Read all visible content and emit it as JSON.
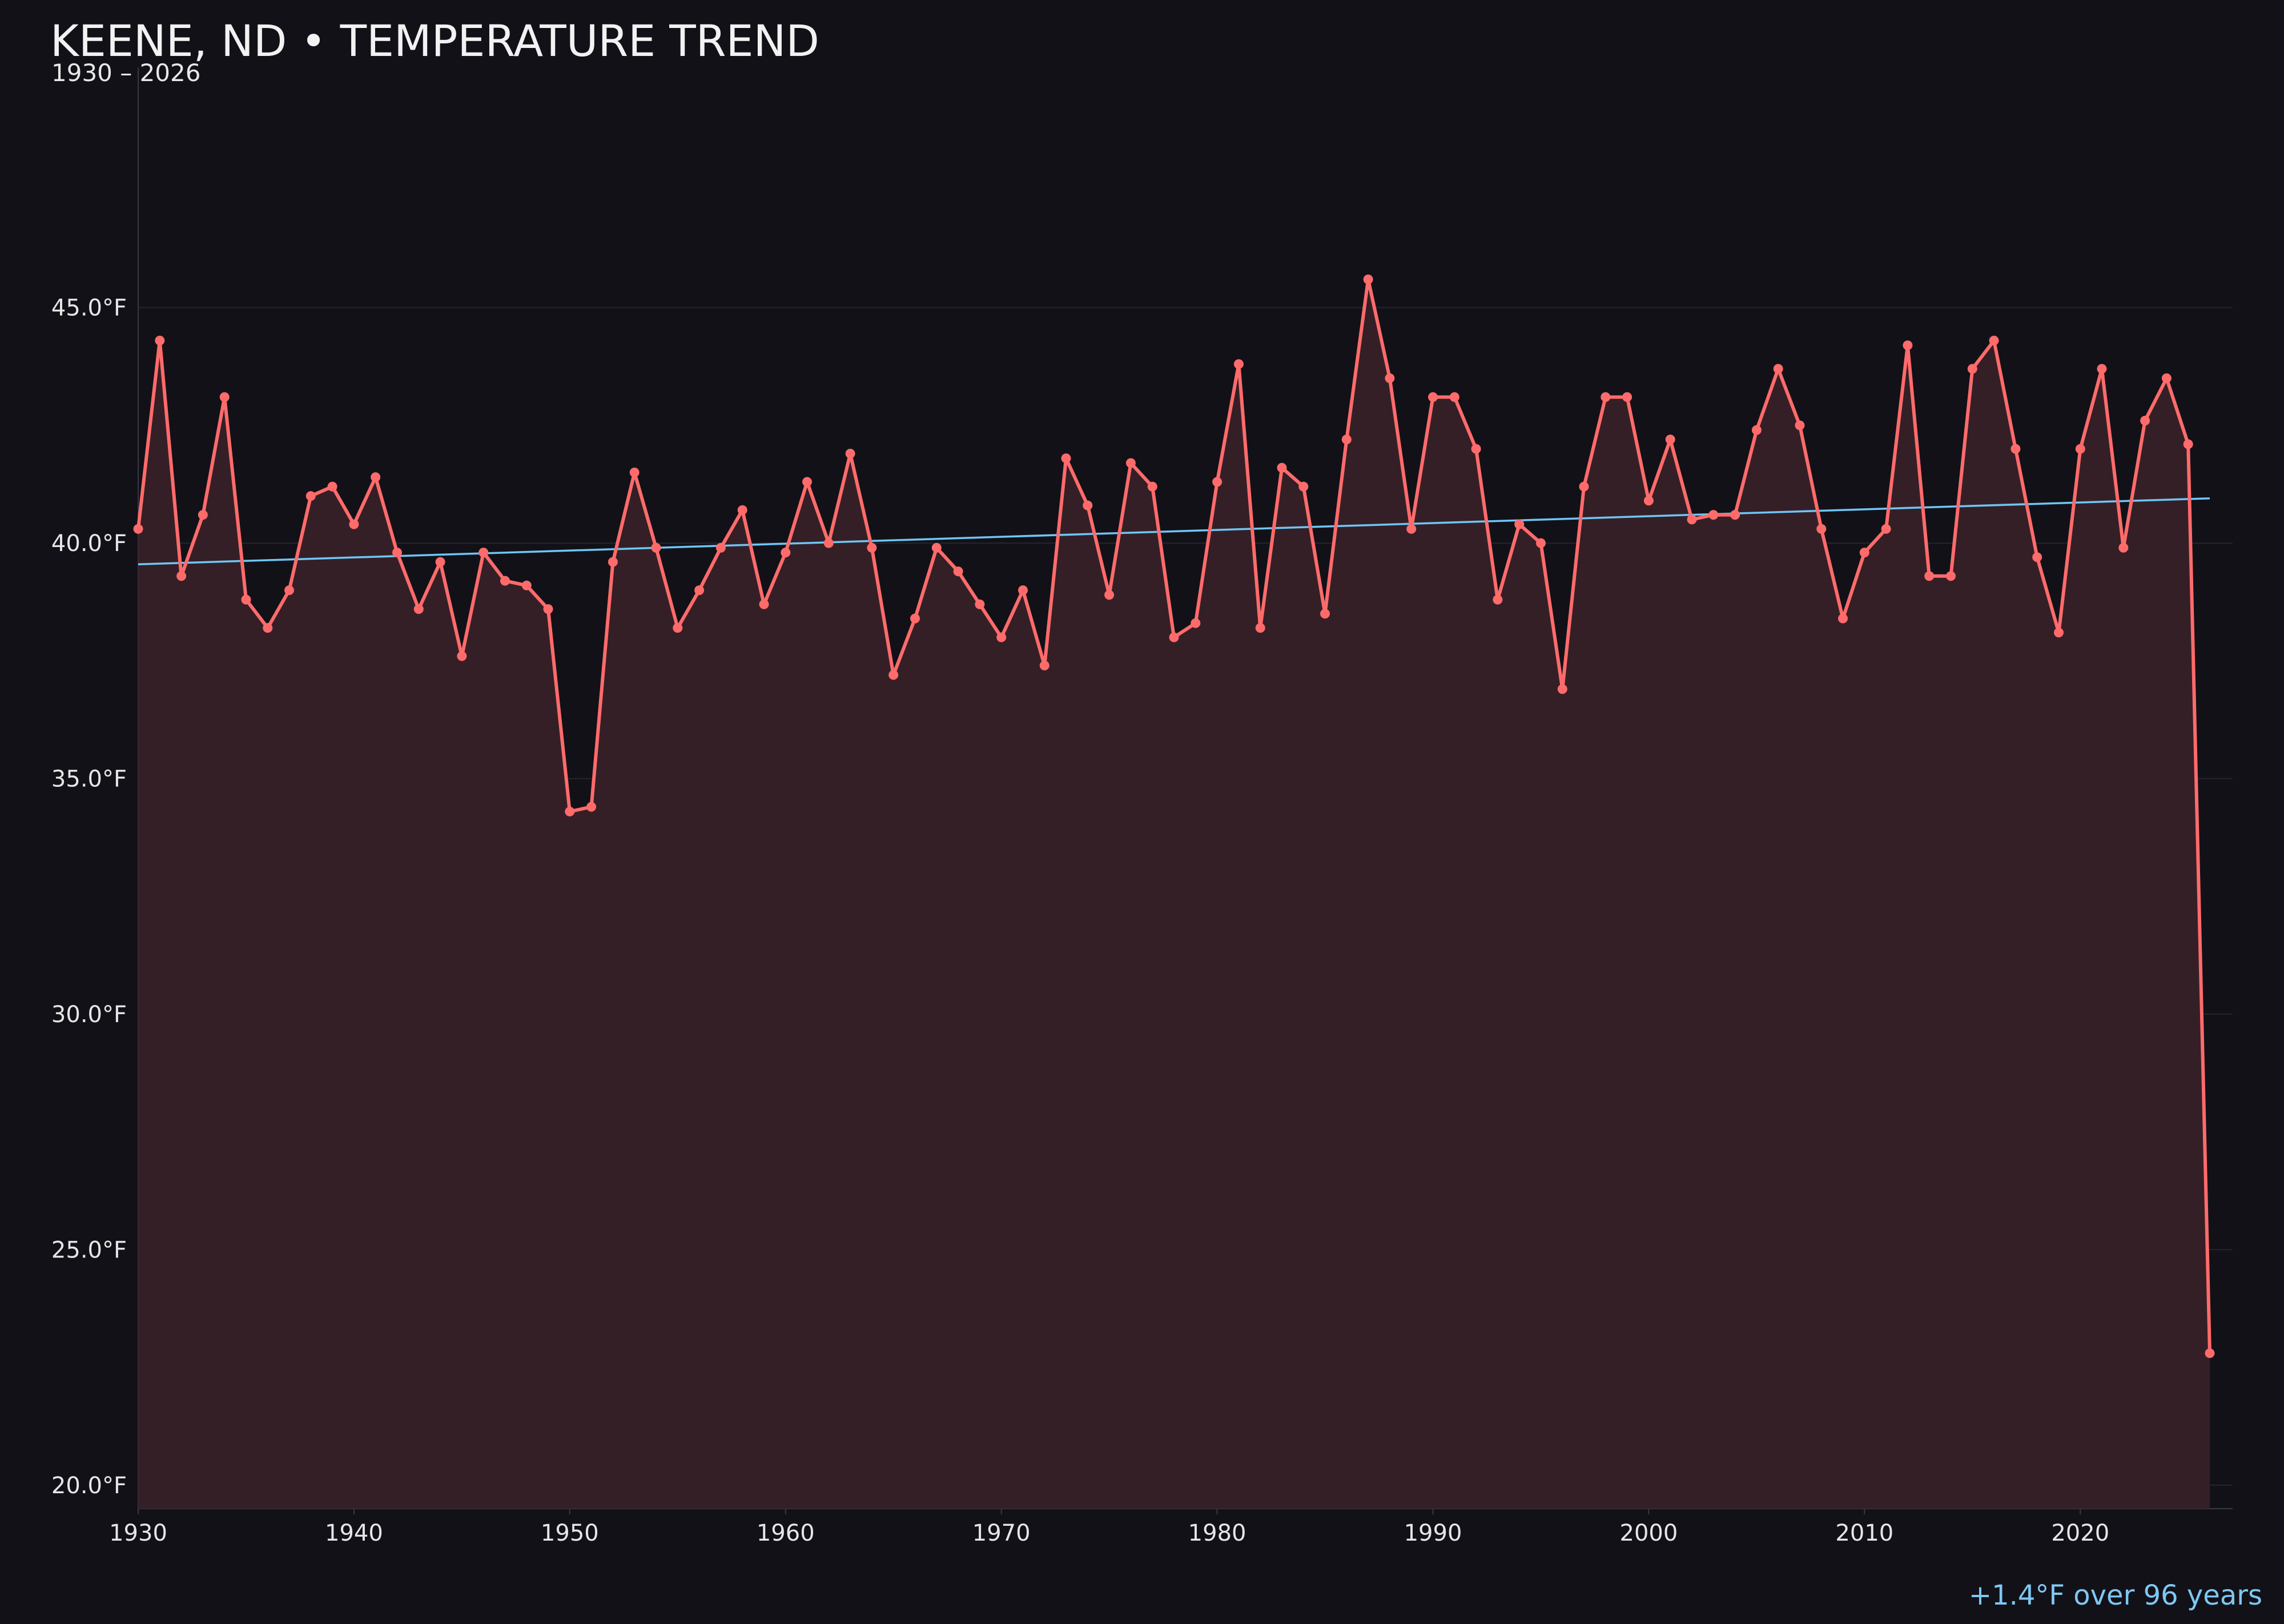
{
  "chart_data": {
    "type": "line",
    "title": "KEENE, ND • TEMPERATURE TREND",
    "subtitle": "1930 – 2026",
    "xlabel": "",
    "ylabel": "",
    "xlim": [
      1930,
      2026
    ],
    "ylim": [
      19.5,
      50.1
    ],
    "x_ticks": [
      1930,
      1940,
      1950,
      1960,
      1970,
      1980,
      1990,
      2000,
      2010,
      2020
    ],
    "y_ticks": [
      {
        "value": 20,
        "label": "20.0°F"
      },
      {
        "value": 25,
        "label": "25.0°F"
      },
      {
        "value": 30,
        "label": "30.0°F"
      },
      {
        "value": 35,
        "label": "35.0°F"
      },
      {
        "value": 40,
        "label": "40.0°F"
      },
      {
        "value": 45,
        "label": "45.0°F"
      }
    ],
    "grid": true,
    "colors": {
      "background": "#121118",
      "series": "#ff6b6b",
      "fill": "#351f26",
      "trend": "#6ec6f5",
      "grid": "#26242d",
      "axis": "#3a3842"
    },
    "series": [
      {
        "x": [
          1930,
          1931,
          1932,
          1933,
          1934,
          1935,
          1936,
          1937,
          1938,
          1939,
          1940,
          1941,
          1942,
          1943,
          1944,
          1945,
          1946,
          1947,
          1948,
          1949,
          1950,
          1951,
          1952,
          1953,
          1954,
          1955,
          1956,
          1957,
          1958,
          1959,
          1960,
          1961,
          1962,
          1963,
          1964,
          1965,
          1966,
          1967,
          1968,
          1969,
          1970,
          1971,
          1972,
          1973,
          1974,
          1975,
          1976,
          1977,
          1978,
          1979,
          1980,
          1981,
          1982,
          1983,
          1984,
          1985,
          1986,
          1987,
          1988,
          1989,
          1990,
          1991,
          1992,
          1993,
          1994,
          1995,
          1996,
          1997,
          1998,
          1999,
          2000,
          2001,
          2002,
          2003,
          2004,
          2005,
          2006,
          2007,
          2008,
          2009,
          2010,
          2011,
          2012,
          2013,
          2014,
          2015,
          2016,
          2017,
          2018,
          2019,
          2020,
          2021,
          2022,
          2023,
          2024,
          2025,
          2026
        ],
        "values": [
          40.3,
          44.3,
          39.3,
          40.6,
          43.1,
          38.8,
          38.2,
          39.0,
          41.0,
          41.2,
          40.4,
          41.4,
          39.8,
          38.6,
          39.6,
          37.6,
          39.8,
          39.2,
          39.1,
          38.6,
          34.3,
          34.4,
          39.6,
          41.5,
          39.9,
          38.2,
          39.0,
          39.9,
          40.7,
          38.7,
          39.8,
          41.3,
          40.0,
          41.9,
          39.9,
          37.2,
          38.4,
          39.9,
          39.4,
          38.7,
          38.0,
          39.0,
          37.4,
          41.8,
          40.8,
          38.9,
          41.7,
          41.2,
          38.0,
          38.3,
          41.3,
          43.8,
          38.2,
          41.6,
          41.2,
          38.5,
          42.2,
          45.6,
          43.5,
          40.3,
          43.1,
          43.1,
          42.0,
          38.8,
          40.4,
          40.0,
          36.9,
          41.2,
          43.1,
          43.1,
          40.9,
          42.2,
          40.5,
          40.6,
          40.6,
          42.4,
          43.7,
          42.5,
          40.3,
          38.4,
          39.8,
          40.3,
          44.2,
          39.3,
          39.3,
          43.7,
          44.3,
          42.0,
          39.7,
          38.1,
          42.0,
          43.7,
          39.9,
          42.6,
          43.5,
          42.1,
          22.8
        ]
      },
      {
        "x": [
          1930,
          2026
        ],
        "values": [
          39.55,
          40.95
        ]
      }
    ],
    "annotation": "+1.4°F over 96 years"
  }
}
